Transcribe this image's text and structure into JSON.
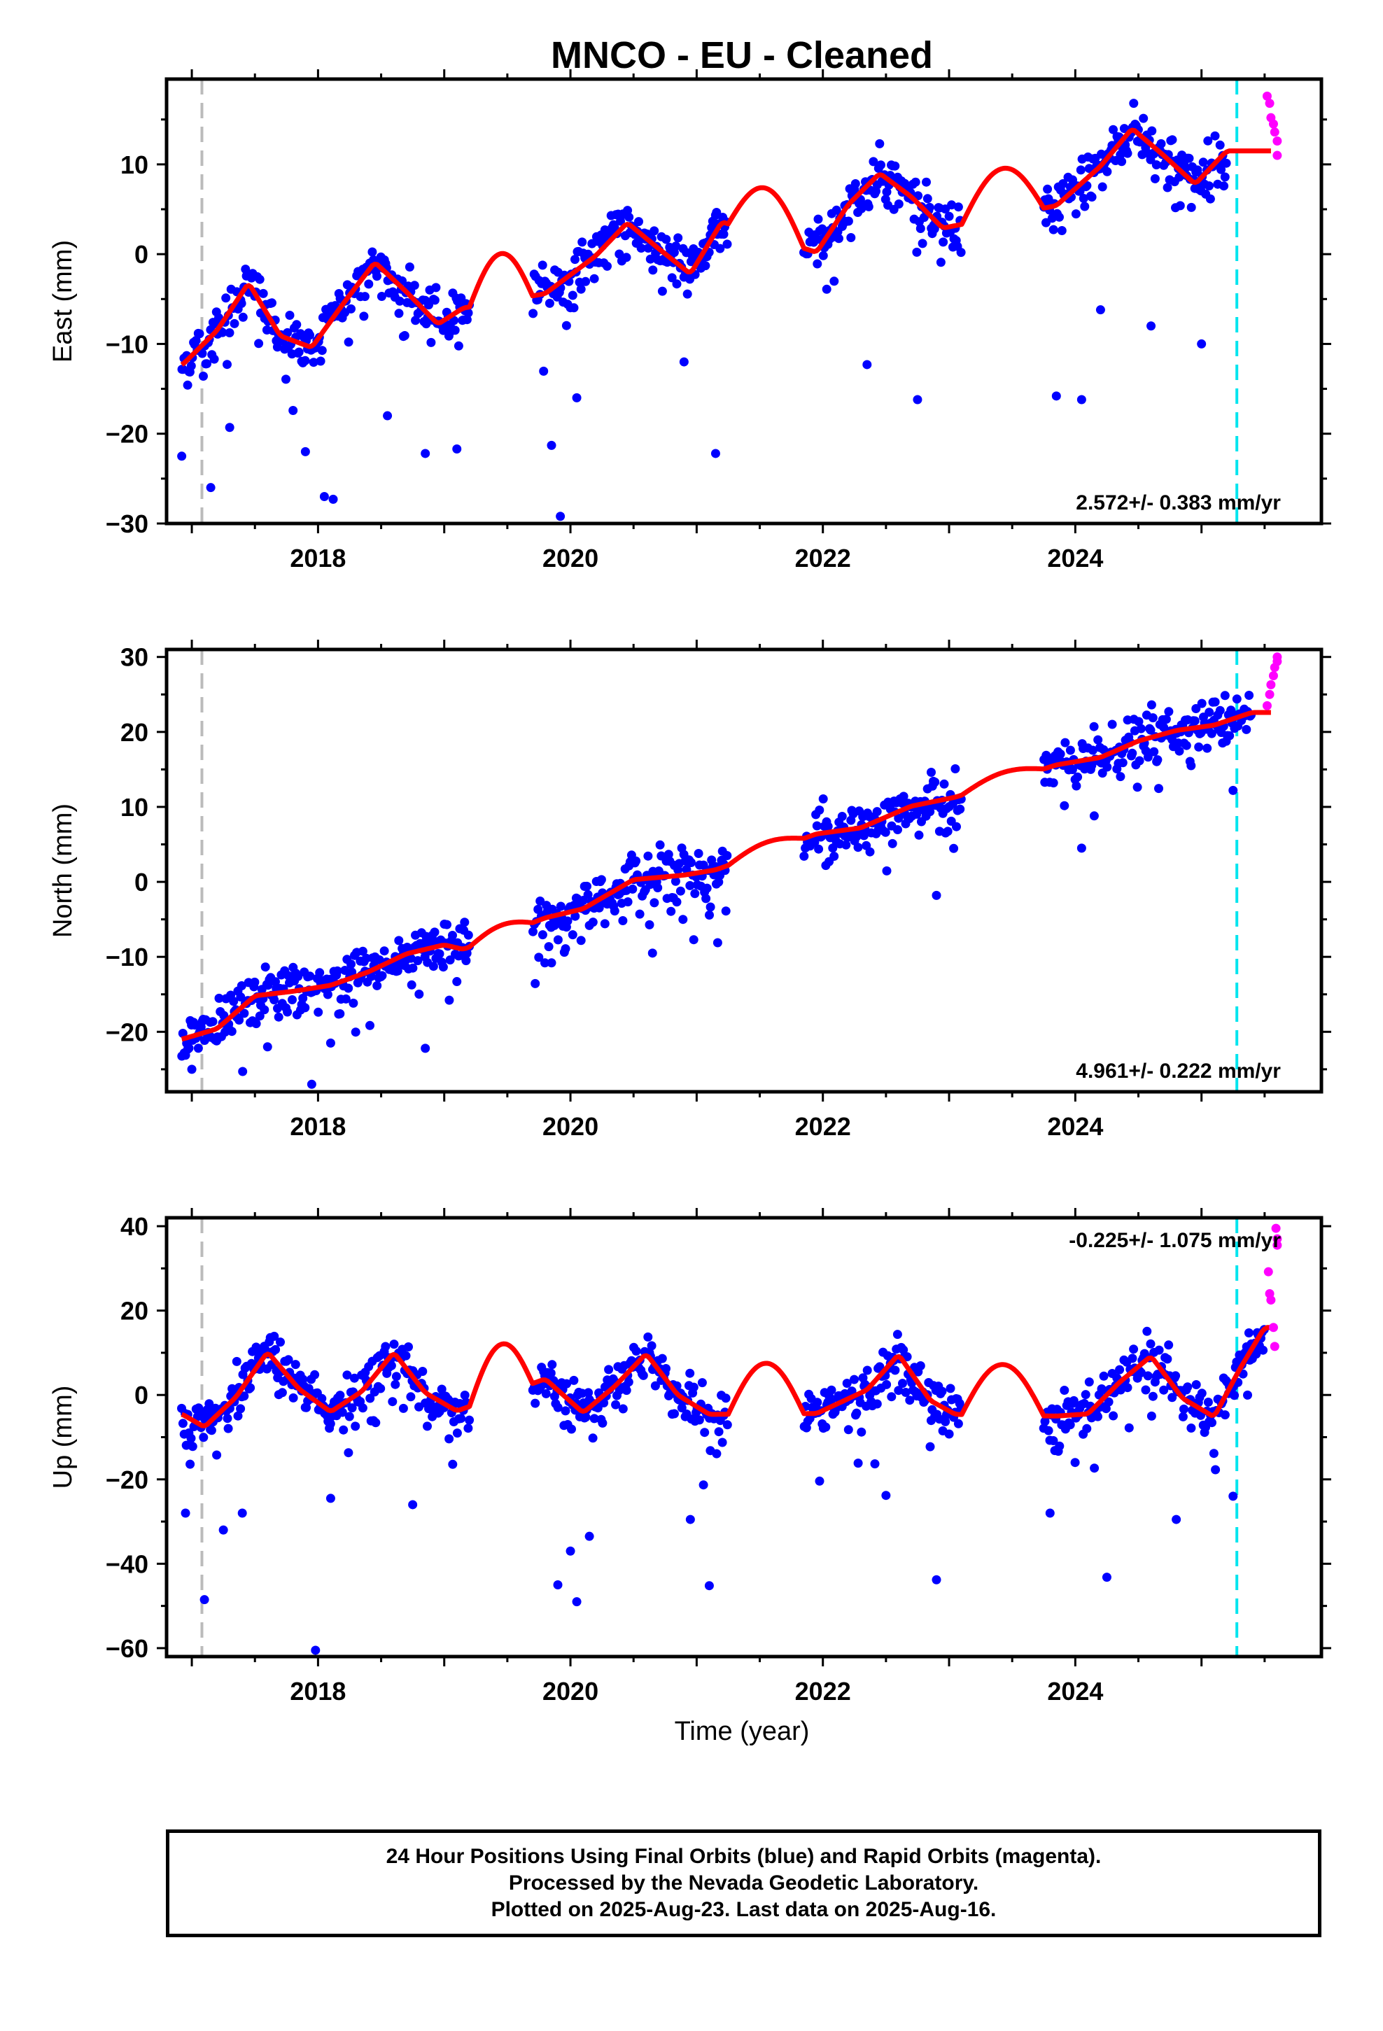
{
  "title": "MNCO  - EU - Cleaned",
  "xlabel": "Time (year)",
  "caption": [
    "24 Hour Positions Using Final Orbits (blue) and Rapid Orbits (magenta).",
    "Processed by the Nevada Geodetic Laboratory.",
    "Plotted on 2025-Aug-23. Last data on 2025-Aug-16."
  ],
  "colors": {
    "final_orbits": "#0000ff",
    "rapid_orbits": "#ff00ff",
    "model_fit": "#ff0000",
    "event_line_gray": "#bbbbbb",
    "event_line_cyan": "#00e5ee"
  },
  "chart_data": [
    {
      "type": "scatter",
      "panel": "east",
      "ylabel": "East (mm)",
      "xlim": [
        2016.8,
        2025.95
      ],
      "ylim": [
        -30,
        19.5
      ],
      "xticks": [
        2018,
        2020,
        2022,
        2024
      ],
      "yticks": [
        -30,
        -20,
        -10,
        0,
        10
      ],
      "rate_label": "2.572+/- 0.383 mm/yr",
      "rate_position": "bottom-right",
      "fit": {
        "rate": 2.572,
        "intercept_2017": -11.5,
        "annual_amp": 3.8,
        "annual_phase_year": 2017.45
      },
      "gaps": [
        [
          2019.2,
          2019.7
        ],
        [
          2021.25,
          2021.85
        ],
        [
          2023.1,
          2023.75
        ]
      ],
      "event_lines": [
        {
          "x": 2017.08,
          "color": "gray"
        },
        {
          "x": 2025.28,
          "color": "cyan"
        }
      ],
      "series": [
        {
          "name": "Final Orbits",
          "color": "blue",
          "sampled": [
            [
              2016.92,
              -12.4
            ],
            [
              2017.2,
              -8.5
            ],
            [
              2017.45,
              -3.2
            ],
            [
              2017.7,
              -9.1
            ],
            [
              2017.95,
              -10.4
            ],
            [
              2018.2,
              -5.5
            ],
            [
              2018.45,
              -0.9
            ],
            [
              2018.7,
              -4.2
            ],
            [
              2018.95,
              -7.8
            ],
            [
              2019.15,
              -6.0
            ],
            [
              2019.8,
              -4.4
            ],
            [
              2020.2,
              -0.2
            ],
            [
              2020.45,
              3.5
            ],
            [
              2020.7,
              0.6
            ],
            [
              2020.95,
              -2.2
            ],
            [
              2021.2,
              3.6
            ],
            [
              2021.95,
              0.2
            ],
            [
              2022.2,
              5.5
            ],
            [
              2022.45,
              9.0
            ],
            [
              2022.7,
              6.4
            ],
            [
              2022.95,
              2.9
            ],
            [
              2023.85,
              5.4
            ],
            [
              2024.2,
              9.8
            ],
            [
              2024.45,
              14.0
            ],
            [
              2024.7,
              11.0
            ],
            [
              2024.95,
              7.8
            ],
            [
              2025.2,
              11.5
            ]
          ],
          "outliers": [
            [
              2016.92,
              -22.5
            ],
            [
              2017.15,
              -26
            ],
            [
              2017.3,
              -19.3
            ],
            [
              2017.9,
              -22
            ],
            [
              2018.05,
              -27
            ],
            [
              2018.12,
              -27.3
            ],
            [
              2018.55,
              -18
            ],
            [
              2018.85,
              -22.2
            ],
            [
              2019.1,
              -21.7
            ],
            [
              2019.85,
              -21.3
            ],
            [
              2019.92,
              -29.2
            ],
            [
              2020.05,
              -16
            ],
            [
              2020.9,
              -12
            ],
            [
              2021.15,
              -22.2
            ],
            [
              2022.35,
              -12.3
            ],
            [
              2022.75,
              -16.2
            ],
            [
              2023.85,
              -15.8
            ],
            [
              2024.05,
              -16.2
            ],
            [
              2024.2,
              -6.2
            ],
            [
              2024.6,
              -8
            ],
            [
              2025.0,
              -10
            ]
          ]
        },
        {
          "name": "Rapid Orbits",
          "color": "magenta",
          "points": [
            [
              2025.52,
              17.6
            ],
            [
              2025.54,
              16.8
            ],
            [
              2025.55,
              15.2
            ],
            [
              2025.57,
              14.5
            ],
            [
              2025.58,
              13.6
            ],
            [
              2025.6,
              12.6
            ],
            [
              2025.6,
              11.0
            ]
          ]
        }
      ]
    },
    {
      "type": "scatter",
      "panel": "north",
      "ylabel": "North (mm)",
      "xlim": [
        2016.8,
        2025.95
      ],
      "ylim": [
        -28,
        31
      ],
      "xticks": [
        2018,
        2020,
        2022,
        2024
      ],
      "yticks": [
        -20,
        -10,
        0,
        10,
        20,
        30
      ],
      "rate_label": "4.961+/- 0.222 mm/yr",
      "rate_position": "bottom-right",
      "fit": {
        "rate": 4.961,
        "intercept_2017": -19.5,
        "annual_amp": 0.9,
        "annual_phase_year": 2017.6
      },
      "gaps": [
        [
          2019.2,
          2019.7
        ],
        [
          2021.25,
          2021.85
        ],
        [
          2023.1,
          2023.75
        ]
      ],
      "event_lines": [
        {
          "x": 2017.08,
          "color": "gray"
        },
        {
          "x": 2025.28,
          "color": "cyan"
        }
      ],
      "series": [
        {
          "name": "Final Orbits",
          "color": "blue",
          "sampled": [
            [
              2016.92,
              -21.0
            ],
            [
              2017.2,
              -19.6
            ],
            [
              2017.5,
              -15.2
            ],
            [
              2017.8,
              -14.6
            ],
            [
              2018.1,
              -13.8
            ],
            [
              2018.4,
              -12.0
            ],
            [
              2018.7,
              -9.6
            ],
            [
              2019.0,
              -8.4
            ],
            [
              2019.15,
              -9.0
            ],
            [
              2019.8,
              -4.8
            ],
            [
              2020.1,
              -3.6
            ],
            [
              2020.5,
              0.3
            ],
            [
              2020.9,
              0.9
            ],
            [
              2021.15,
              1.6
            ],
            [
              2021.95,
              6.4
            ],
            [
              2022.3,
              7.2
            ],
            [
              2022.7,
              10.1
            ],
            [
              2023.05,
              11.3
            ],
            [
              2023.85,
              15.6
            ],
            [
              2024.2,
              16.6
            ],
            [
              2024.5,
              18.8
            ],
            [
              2024.8,
              20.2
            ],
            [
              2025.1,
              20.9
            ],
            [
              2025.4,
              22.6
            ]
          ],
          "outliers": [
            [
              2017.0,
              -25
            ],
            [
              2017.6,
              -22
            ],
            [
              2017.95,
              -27
            ],
            [
              2018.1,
              -21.5
            ],
            [
              2018.85,
              -22.2
            ],
            [
              2019.1,
              -13.3
            ],
            [
              2019.85,
              -10.8
            ],
            [
              2020.65,
              -9.5
            ],
            [
              2022.9,
              -1.8
            ],
            [
              2024.05,
              4.5
            ],
            [
              2024.15,
              8.8
            ],
            [
              2025.25,
              12.2
            ]
          ]
        },
        {
          "name": "Rapid Orbits",
          "color": "magenta",
          "points": [
            [
              2025.52,
              23.5
            ],
            [
              2025.54,
              25.0
            ],
            [
              2025.55,
              26.3
            ],
            [
              2025.57,
              27.5
            ],
            [
              2025.58,
              28.6
            ],
            [
              2025.6,
              29.4
            ],
            [
              2025.6,
              30.0
            ]
          ]
        }
      ]
    },
    {
      "type": "scatter",
      "panel": "up",
      "ylabel": "Up (mm)",
      "xlim": [
        2016.8,
        2025.95
      ],
      "ylim": [
        -62,
        42
      ],
      "xticks": [
        2018,
        2020,
        2022,
        2024
      ],
      "yticks": [
        -60,
        -40,
        -20,
        0,
        20,
        40
      ],
      "rate_label": "-0.225+/- 1.075 mm/yr",
      "rate_position": "top-right",
      "fit": {
        "rate": -0.225,
        "intercept_2017": 2.5,
        "annual_amp": 7.5,
        "annual_phase_year": 2017.6
      },
      "gaps": [
        [
          2019.2,
          2019.7
        ],
        [
          2021.25,
          2021.85
        ],
        [
          2023.1,
          2023.75
        ]
      ],
      "event_lines": [
        {
          "x": 2017.08,
          "color": "gray"
        },
        {
          "x": 2025.28,
          "color": "cyan"
        }
      ],
      "series": [
        {
          "name": "Final Orbits",
          "color": "blue",
          "sampled": [
            [
              2016.92,
              -4.5
            ],
            [
              2017.1,
              -7.6
            ],
            [
              2017.35,
              -0.5
            ],
            [
              2017.6,
              10.2
            ],
            [
              2017.85,
              1.4
            ],
            [
              2018.1,
              -4.0
            ],
            [
              2018.35,
              0.9
            ],
            [
              2018.6,
              10.1
            ],
            [
              2018.85,
              0.5
            ],
            [
              2019.1,
              -3.8
            ],
            [
              2019.8,
              3.8
            ],
            [
              2020.1,
              -4.2
            ],
            [
              2020.35,
              2.0
            ],
            [
              2020.6,
              9.8
            ],
            [
              2020.85,
              0.0
            ],
            [
              2021.1,
              -4.6
            ],
            [
              2021.95,
              -4.4
            ],
            [
              2022.35,
              1.2
            ],
            [
              2022.6,
              9.6
            ],
            [
              2022.85,
              -1.3
            ],
            [
              2023.05,
              -4.6
            ],
            [
              2023.85,
              -5.0
            ],
            [
              2024.1,
              -4.5
            ],
            [
              2024.35,
              3.0
            ],
            [
              2024.6,
              9.2
            ],
            [
              2024.85,
              -0.8
            ],
            [
              2025.1,
              -5.2
            ],
            [
              2025.3,
              6.0
            ],
            [
              2025.5,
              16.0
            ]
          ],
          "outliers": [
            [
              2016.95,
              -28
            ],
            [
              2017.1,
              -48.5
            ],
            [
              2017.25,
              -32
            ],
            [
              2017.4,
              -28
            ],
            [
              2017.98,
              -60.5
            ],
            [
              2018.1,
              -24.5
            ],
            [
              2018.75,
              -26
            ],
            [
              2019.9,
              -45
            ],
            [
              2020.0,
              -37
            ],
            [
              2020.05,
              -49
            ],
            [
              2020.15,
              -33.5
            ],
            [
              2020.95,
              -29.5
            ],
            [
              2021.1,
              -45.2
            ],
            [
              2022.5,
              -23.8
            ],
            [
              2022.9,
              -43.8
            ],
            [
              2023.8,
              -28
            ],
            [
              2024.25,
              -43.2
            ],
            [
              2024.8,
              -29.5
            ],
            [
              2025.25,
              -24
            ]
          ]
        },
        {
          "name": "Rapid Orbits",
          "color": "magenta",
          "points": [
            [
              2025.53,
              29.2
            ],
            [
              2025.54,
              24.0
            ],
            [
              2025.55,
              22.5
            ],
            [
              2025.57,
              16.0
            ],
            [
              2025.58,
              11.5
            ],
            [
              2025.59,
              39.5
            ],
            [
              2025.6,
              37.0
            ],
            [
              2025.6,
              35.5
            ]
          ]
        }
      ]
    }
  ]
}
